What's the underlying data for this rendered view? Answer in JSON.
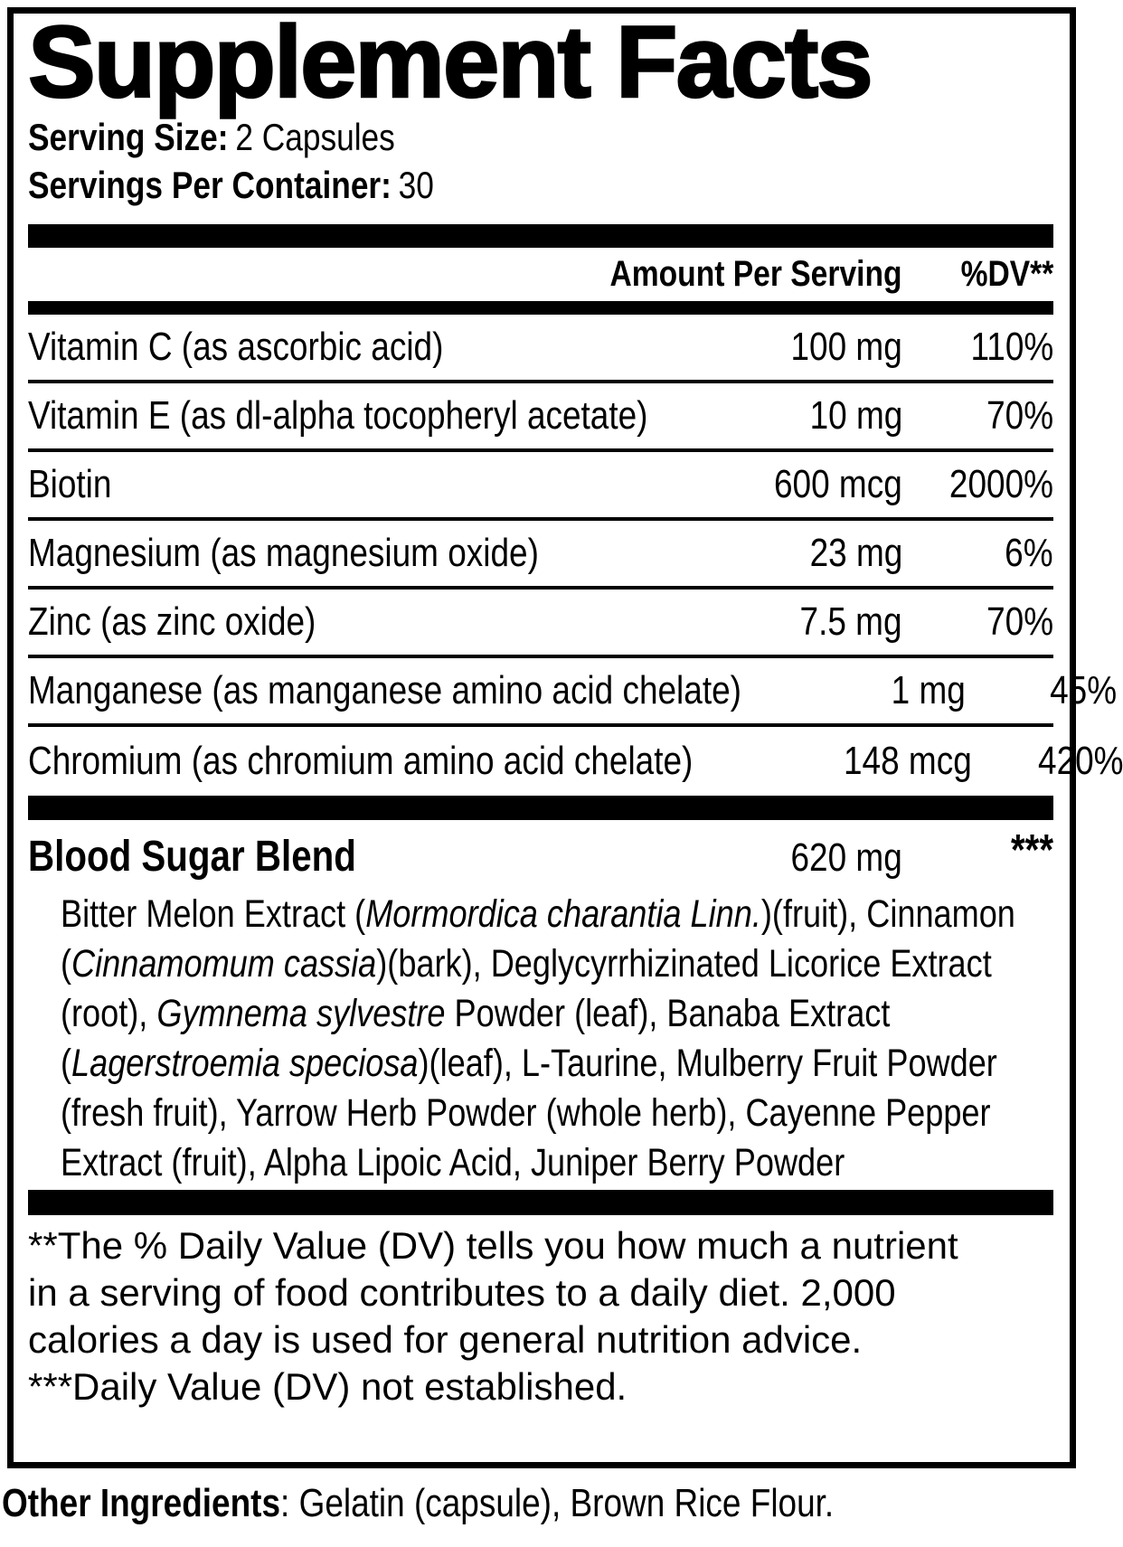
{
  "colors": {
    "ink": "#000000",
    "background": "#ffffff"
  },
  "label": {
    "title": "Supplement Facts",
    "serving_size_label": "Serving Size:",
    "serving_size_value": "2 Capsules",
    "servings_per_container_label": "Servings Per Container:",
    "servings_per_container_value": "30",
    "columns": {
      "amount": "Amount Per Serving",
      "dv": "%DV**"
    },
    "rows": [
      {
        "name": "Vitamin C (as ascorbic acid)",
        "amount": "100 mg",
        "dv": "110%"
      },
      {
        "name": "Vitamin E (as dl-alpha tocopheryl acetate)",
        "amount": "10 mg",
        "dv": "70%"
      },
      {
        "name": "Biotin",
        "amount": "600 mcg",
        "dv": "2000%"
      },
      {
        "name": "Magnesium (as magnesium oxide)",
        "amount": "23 mg",
        "dv": "6%"
      },
      {
        "name": "Zinc (as zinc oxide)",
        "amount": "7.5 mg",
        "dv": "70%"
      },
      {
        "name": "Manganese (as manganese amino acid chelate)",
        "amount": "1 mg",
        "dv": "45%"
      },
      {
        "name": "Chromium (as chromium amino acid chelate)",
        "amount": "148 mcg",
        "dv": "420%"
      }
    ],
    "blend": {
      "name": "Blood Sugar Blend",
      "amount": "620 mg",
      "dv": "***",
      "ingredients": [
        {
          "t": "Bitter Melon Extract ("
        },
        {
          "t": "Mormordica charantia Linn.",
          "i": true
        },
        {
          "t": ")(fruit), Cinnamon ("
        },
        {
          "t": "Cinnamomum cassia",
          "i": true
        },
        {
          "t": ")(bark), Deglycyrrhizinated Licorice Extract (root), "
        },
        {
          "t": "Gymnema sylvestre",
          "i": true
        },
        {
          "t": " Powder (leaf), Banaba Extract ("
        },
        {
          "t": "Lagerstroemia speciosa",
          "i": true
        },
        {
          "t": ")(leaf), L-Taurine, Mulberry Fruit Powder (fresh fruit), Yarrow Herb Powder (whole herb), Cayenne Pepper Extract (fruit), Alpha Lipoic Acid, Juniper Berry Powder"
        }
      ]
    },
    "footnotes": {
      "daily_value": "**The % Daily Value (DV) tells you how much a nutrient in a serving of food contributes to a daily diet. 2,000 calories a day is used for general nutrition advice.",
      "not_established": "***Daily Value (DV) not established."
    },
    "other_ingredients_label": "Other Ingredients",
    "other_ingredients_value": ": Gelatin (capsule), Brown Rice Flour."
  }
}
